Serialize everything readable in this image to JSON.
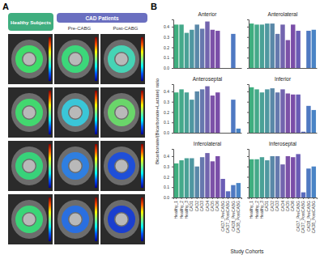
{
  "figure": {
    "panel_a_letter": "A",
    "panel_b_letter": "B",
    "groups": [
      "Healthy Subjects",
      "CAD Patients"
    ],
    "subgroups": [
      "Pre-CABG",
      "Post-CABG"
    ],
    "y_label": "Bicarbonate/(Bicarbonate+Lactate) ratio",
    "x_label": "Study Cohorts"
  },
  "chart_data": [
    {
      "type": "bar",
      "title": "Anterior",
      "categories": [
        "Healthy_1",
        "Healthy_2",
        "Healthy_3",
        "CAD1",
        "CAD2",
        "CAD3",
        "CAD4",
        "CAD5",
        "CAD6",
        "CAD7_PreCABG",
        "CAD7_PostCABG",
        "CAD8_PreCABG",
        "CAD8_PostCABG"
      ],
      "values": [
        0.42,
        0.42,
        0.34,
        0.37,
        0.42,
        0.38,
        0.45,
        0.37,
        0.36,
        null,
        null,
        0.33,
        null
      ],
      "colors": [
        "#3fae7f",
        "#44a98a",
        "#4aa196",
        "#4f97a0",
        "#5a88a8",
        "#6678ae",
        "#7264ae",
        "#7c52a8",
        "#7a4ea8",
        "#6a5cb5",
        "#5a6bbd",
        "#4f79c2",
        "#4a84c6"
      ],
      "ylim": [
        0,
        0.47
      ],
      "yticks": [
        {
          "value": 0,
          "label": "0.0"
        },
        0.1,
        0.2,
        0.3,
        0.4
      ],
      "tick_labels": "y"
    },
    {
      "type": "bar",
      "title": "Anterolateral",
      "categories": [
        "Healthy_1",
        "Healthy_2",
        "Healthy_3",
        "CAD1",
        "CAD2",
        "CAD3",
        "CAD4",
        "CAD5",
        "CAD6",
        "CAD7_PreCABG",
        "CAD7_PostCABG",
        "CAD8_PreCABG",
        "CAD8_PostCABG"
      ],
      "values": [
        0.43,
        0.42,
        0.42,
        0.43,
        0.43,
        0.33,
        0.42,
        0.27,
        0.42,
        0.36,
        null,
        0.36,
        0.37
      ],
      "colors": [
        "#3fae7f",
        "#44a98a",
        "#4aa196",
        "#4f97a0",
        "#5a88a8",
        "#6678ae",
        "#7264ae",
        "#7c52a8",
        "#7a4ea8",
        "#6a5cb5",
        "#5a6bbd",
        "#4f79c2",
        "#4a84c6"
      ],
      "ylim": [
        0,
        0.47
      ],
      "yticks": [
        {
          "value": 0,
          "label": "0.0"
        },
        0.1,
        0.2,
        0.3,
        0.4
      ],
      "tick_labels": false
    },
    {
      "type": "bar",
      "title": "Anteroseptal",
      "categories": [
        "Healthy_1",
        "Healthy_2",
        "Healthy_3",
        "CAD1",
        "CAD2",
        "CAD3",
        "CAD4",
        "CAD5",
        "CAD6",
        "CAD7_PreCABG",
        "CAD7_PostCABG",
        "CAD8_PreCABG",
        "CAD8_PostCABG"
      ],
      "values": [
        0.39,
        0.42,
        0.39,
        0.32,
        0.4,
        0.42,
        0.45,
        0.36,
        0.39,
        null,
        null,
        0.32,
        0.04
      ],
      "colors": [
        "#3fae7f",
        "#44a98a",
        "#4aa196",
        "#4f97a0",
        "#5a88a8",
        "#6678ae",
        "#7264ae",
        "#7c52a8",
        "#7a4ea8",
        "#6a5cb5",
        "#5a6bbd",
        "#4f79c2",
        "#4a84c6"
      ],
      "ylim": [
        0,
        0.47
      ],
      "yticks": [
        {
          "value": 0,
          "label": "0.0"
        },
        0.1,
        0.2,
        0.3,
        0.4
      ],
      "tick_labels": "y"
    },
    {
      "type": "bar",
      "title": "Inferior",
      "categories": [
        "Healthy_1",
        "Healthy_2",
        "Healthy_3",
        "CAD1",
        "CAD2",
        "CAD3",
        "CAD4",
        "CAD5",
        "CAD6",
        "CAD7_PreCABG",
        "CAD7_PostCABG",
        "CAD8_PreCABG",
        "CAD8_PostCABG"
      ],
      "values": [
        0.44,
        0.42,
        0.39,
        0.42,
        0.43,
        0.39,
        0.42,
        0.38,
        0.37,
        0.37,
        0.01,
        0.26,
        0.22
      ],
      "colors": [
        "#3fae7f",
        "#44a98a",
        "#4aa196",
        "#4f97a0",
        "#5a88a8",
        "#6678ae",
        "#7264ae",
        "#7c52a8",
        "#7a4ea8",
        "#6a5cb5",
        "#5a6bbd",
        "#4f79c2",
        "#4a84c6"
      ],
      "ylim": [
        0,
        0.47
      ],
      "yticks": [
        {
          "value": 0,
          "label": "0.0"
        },
        0.1,
        0.2,
        0.3,
        0.4
      ],
      "tick_labels": false
    },
    {
      "type": "bar",
      "title": "Inferolateral",
      "categories": [
        "Healthy_1",
        "Healthy_2",
        "Healthy_3",
        "CAD1",
        "CAD2",
        "CAD3",
        "CAD4",
        "CAD5",
        "CAD6",
        "CAD7_PreCABG",
        "CAD7_PostCABG",
        "CAD8_PreCABG",
        "CAD8_PostCABG"
      ],
      "values": [
        0.33,
        0.36,
        0.38,
        0.38,
        0.3,
        0.39,
        0.43,
        0.35,
        0.4,
        0.18,
        0.06,
        0.12,
        0.14
      ],
      "colors": [
        "#3fae7f",
        "#44a98a",
        "#4aa196",
        "#4f97a0",
        "#5a88a8",
        "#6678ae",
        "#7264ae",
        "#7c52a8",
        "#7a4ea8",
        "#6a5cb5",
        "#5a6bbd",
        "#4f79c2",
        "#4a84c6"
      ],
      "ylim": [
        0,
        0.47
      ],
      "yticks": [
        {
          "value": 0,
          "label": "0.0"
        },
        0.1,
        0.2,
        0.3,
        0.4
      ],
      "tick_labels": true
    },
    {
      "type": "bar",
      "title": "Inferoseptal",
      "categories": [
        "Healthy_1",
        "Healthy_2",
        "Healthy_3",
        "CAD1",
        "CAD2",
        "CAD3",
        "CAD4",
        "CAD5",
        "CAD6",
        "CAD7_PreCABG",
        "CAD7_PostCABG",
        "CAD8_PreCABG",
        "CAD8_PostCABG"
      ],
      "values": [
        0.37,
        0.37,
        0.39,
        0.36,
        0.4,
        0.4,
        0.32,
        0.4,
        0.39,
        0.42,
        0.05,
        0.28,
        0.3
      ],
      "colors": [
        "#3fae7f",
        "#44a98a",
        "#4aa196",
        "#4f97a0",
        "#5a88a8",
        "#6678ae",
        "#7264ae",
        "#7c52a8",
        "#7a4ea8",
        "#6a5cb5",
        "#5a6bbd",
        "#4f79c2",
        "#4a84c6"
      ],
      "ylim": [
        0,
        0.47
      ],
      "yticks": [
        {
          "value": 0,
          "label": "0.0"
        },
        0.1,
        0.2,
        0.3,
        0.4
      ],
      "tick_labels": "x"
    }
  ]
}
